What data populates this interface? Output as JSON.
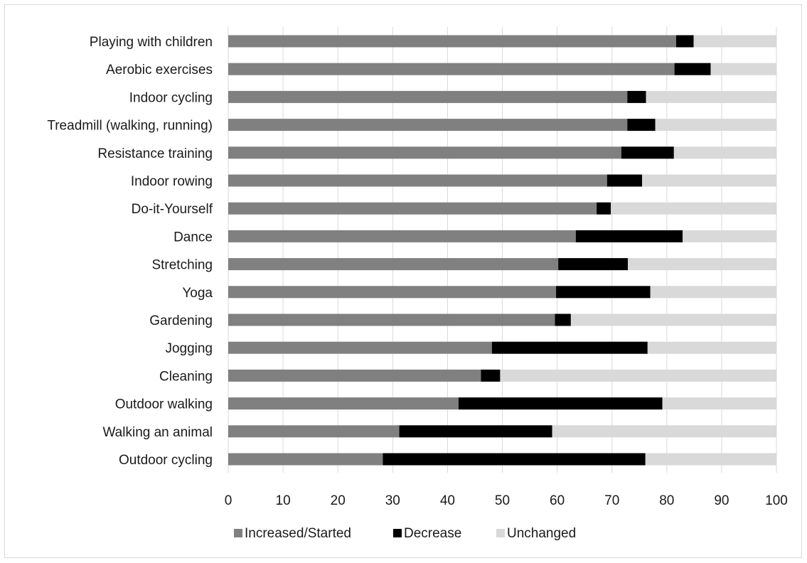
{
  "chart_data": {
    "type": "bar",
    "orientation": "horizontal",
    "stacked": true,
    "categories": [
      "Playing with children",
      "Aerobic exercises",
      "Indoor cycling",
      "Treadmill (walking, running)",
      "Resistance training",
      "Indoor rowing",
      "Do-it-Yourself",
      "Dance",
      "Stretching",
      "Yoga",
      "Gardening",
      "Jogging",
      "Cleaning",
      "Outdoor walking",
      "Walking an animal",
      "Outdoor cycling"
    ],
    "series": [
      {
        "name": "Increased/Started",
        "color": "#808080",
        "values": [
          81.7,
          81.4,
          72.8,
          72.8,
          71.7,
          69.1,
          67.2,
          63.4,
          60.2,
          59.8,
          59.6,
          48.1,
          46.1,
          42.0,
          31.2,
          28.2
        ]
      },
      {
        "name": "Decrease",
        "color": "#000000",
        "values": [
          3.2,
          6.6,
          3.4,
          5.1,
          9.6,
          6.4,
          2.6,
          19.5,
          12.7,
          17.2,
          2.9,
          28.4,
          3.5,
          37.2,
          27.9,
          47.9
        ]
      },
      {
        "name": "Unchanged",
        "color": "#d9d9d9",
        "values": [
          15.1,
          12.0,
          23.8,
          22.1,
          18.7,
          24.5,
          30.2,
          17.1,
          27.1,
          23.0,
          37.5,
          23.5,
          50.4,
          20.8,
          40.9,
          23.9
        ]
      }
    ],
    "xlim": [
      0,
      100
    ],
    "xticks": [
      "0",
      "10",
      "20",
      "30",
      "40",
      "50",
      "60",
      "70",
      "80",
      "90",
      "100"
    ],
    "grid": "vertical",
    "legend": "bottom",
    "title": "",
    "xlabel": "",
    "ylabel": ""
  }
}
